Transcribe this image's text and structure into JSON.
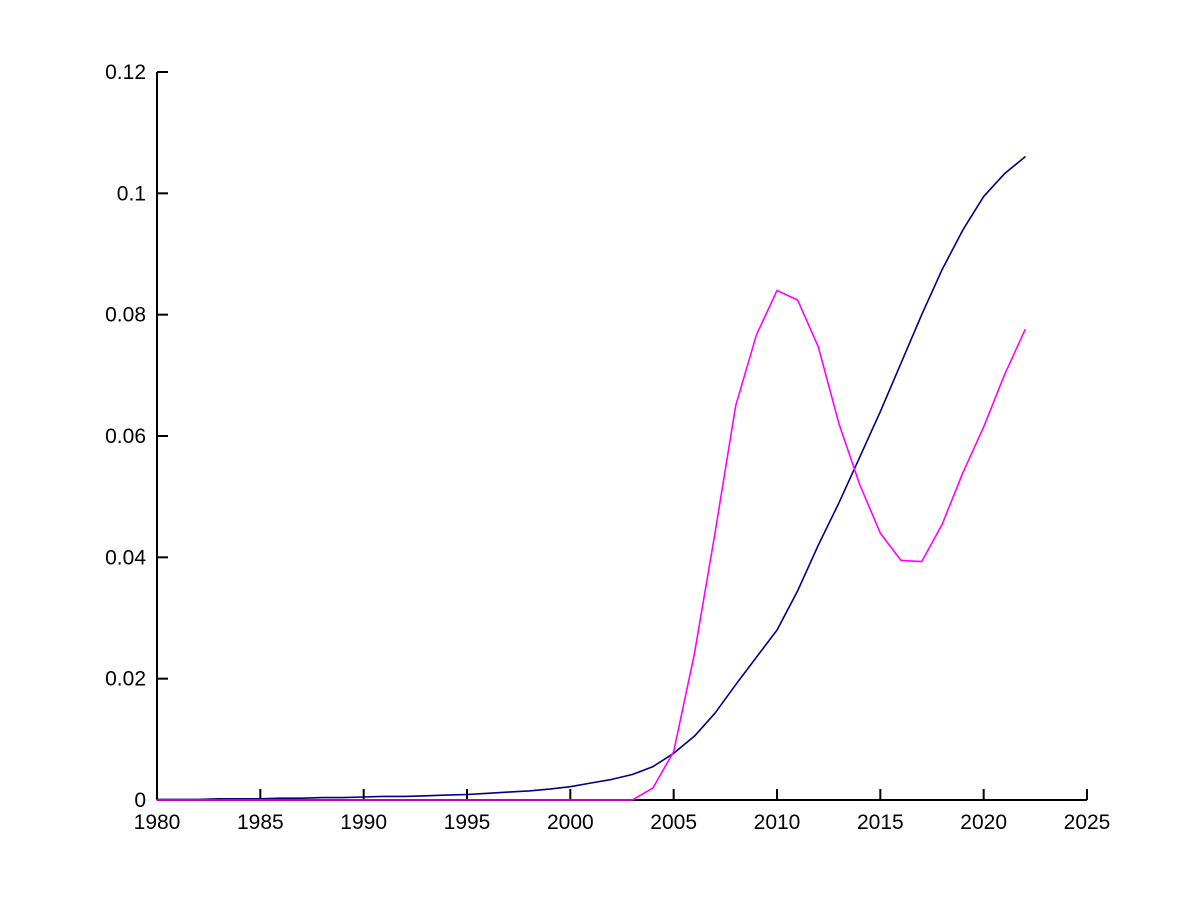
{
  "figure": {
    "background": "#ffffff",
    "axis_color": "#000000",
    "tick_label_color": "#000000"
  },
  "chart_data": {
    "type": "line",
    "title": "",
    "xlabel": "",
    "ylabel": "",
    "grid": false,
    "box": false,
    "legend": "none",
    "xlim": [
      1980,
      2025
    ],
    "ylim": [
      0,
      0.12
    ],
    "x_ticks": [
      1980,
      1985,
      1990,
      1995,
      2000,
      2005,
      2010,
      2015,
      2020,
      2025
    ],
    "x_tick_labels": [
      "1980",
      "1985",
      "1990",
      "1995",
      "2000",
      "2005",
      "2010",
      "2015",
      "2020",
      "2025"
    ],
    "y_ticks": [
      0,
      0.02,
      0.04,
      0.06,
      0.08,
      0.1,
      0.12
    ],
    "y_tick_labels": [
      "0",
      "0.02",
      "0.04",
      "0.06",
      "0.08",
      "0.1",
      "0.12"
    ],
    "x": [
      1980,
      1981,
      1982,
      1983,
      1984,
      1985,
      1986,
      1987,
      1988,
      1989,
      1990,
      1991,
      1992,
      1993,
      1994,
      1995,
      1996,
      1997,
      1998,
      1999,
      2000,
      2001,
      2002,
      2003,
      2004,
      2005,
      2006,
      2007,
      2008,
      2009,
      2010,
      2011,
      2012,
      2013,
      2014,
      2015,
      2016,
      2017,
      2018,
      2019,
      2020,
      2021,
      2022
    ],
    "series": [
      {
        "name": "navy-curve",
        "color": "#000080",
        "values": [
          0.0001,
          0.0001,
          0.0001,
          0.0002,
          0.0002,
          0.0002,
          0.0003,
          0.0003,
          0.0004,
          0.0004,
          0.0005,
          0.0006,
          0.0006,
          0.0007,
          0.0008,
          0.0009,
          0.0011,
          0.0013,
          0.0015,
          0.0018,
          0.0022,
          0.0028,
          0.0034,
          0.0042,
          0.0055,
          0.0077,
          0.0105,
          0.0143,
          0.019,
          0.0235,
          0.028,
          0.0345,
          0.042,
          0.049,
          0.0565,
          0.064,
          0.072,
          0.08,
          0.0875,
          0.094,
          0.0995,
          0.1032,
          0.106
        ]
      },
      {
        "name": "magenta-curve",
        "color": "#FF00FF",
        "values": [
          0,
          0,
          0,
          0,
          0,
          0,
          0,
          0,
          0,
          0,
          0,
          0,
          0,
          0,
          0,
          0,
          0,
          0,
          0,
          0,
          0,
          0,
          0,
          0,
          0.002,
          0.008,
          0.024,
          0.044,
          0.065,
          0.0766,
          0.084,
          0.0824,
          0.0747,
          0.062,
          0.052,
          0.044,
          0.0395,
          0.0393,
          0.0455,
          0.054,
          0.0615,
          0.07,
          0.0775
        ]
      }
    ]
  }
}
